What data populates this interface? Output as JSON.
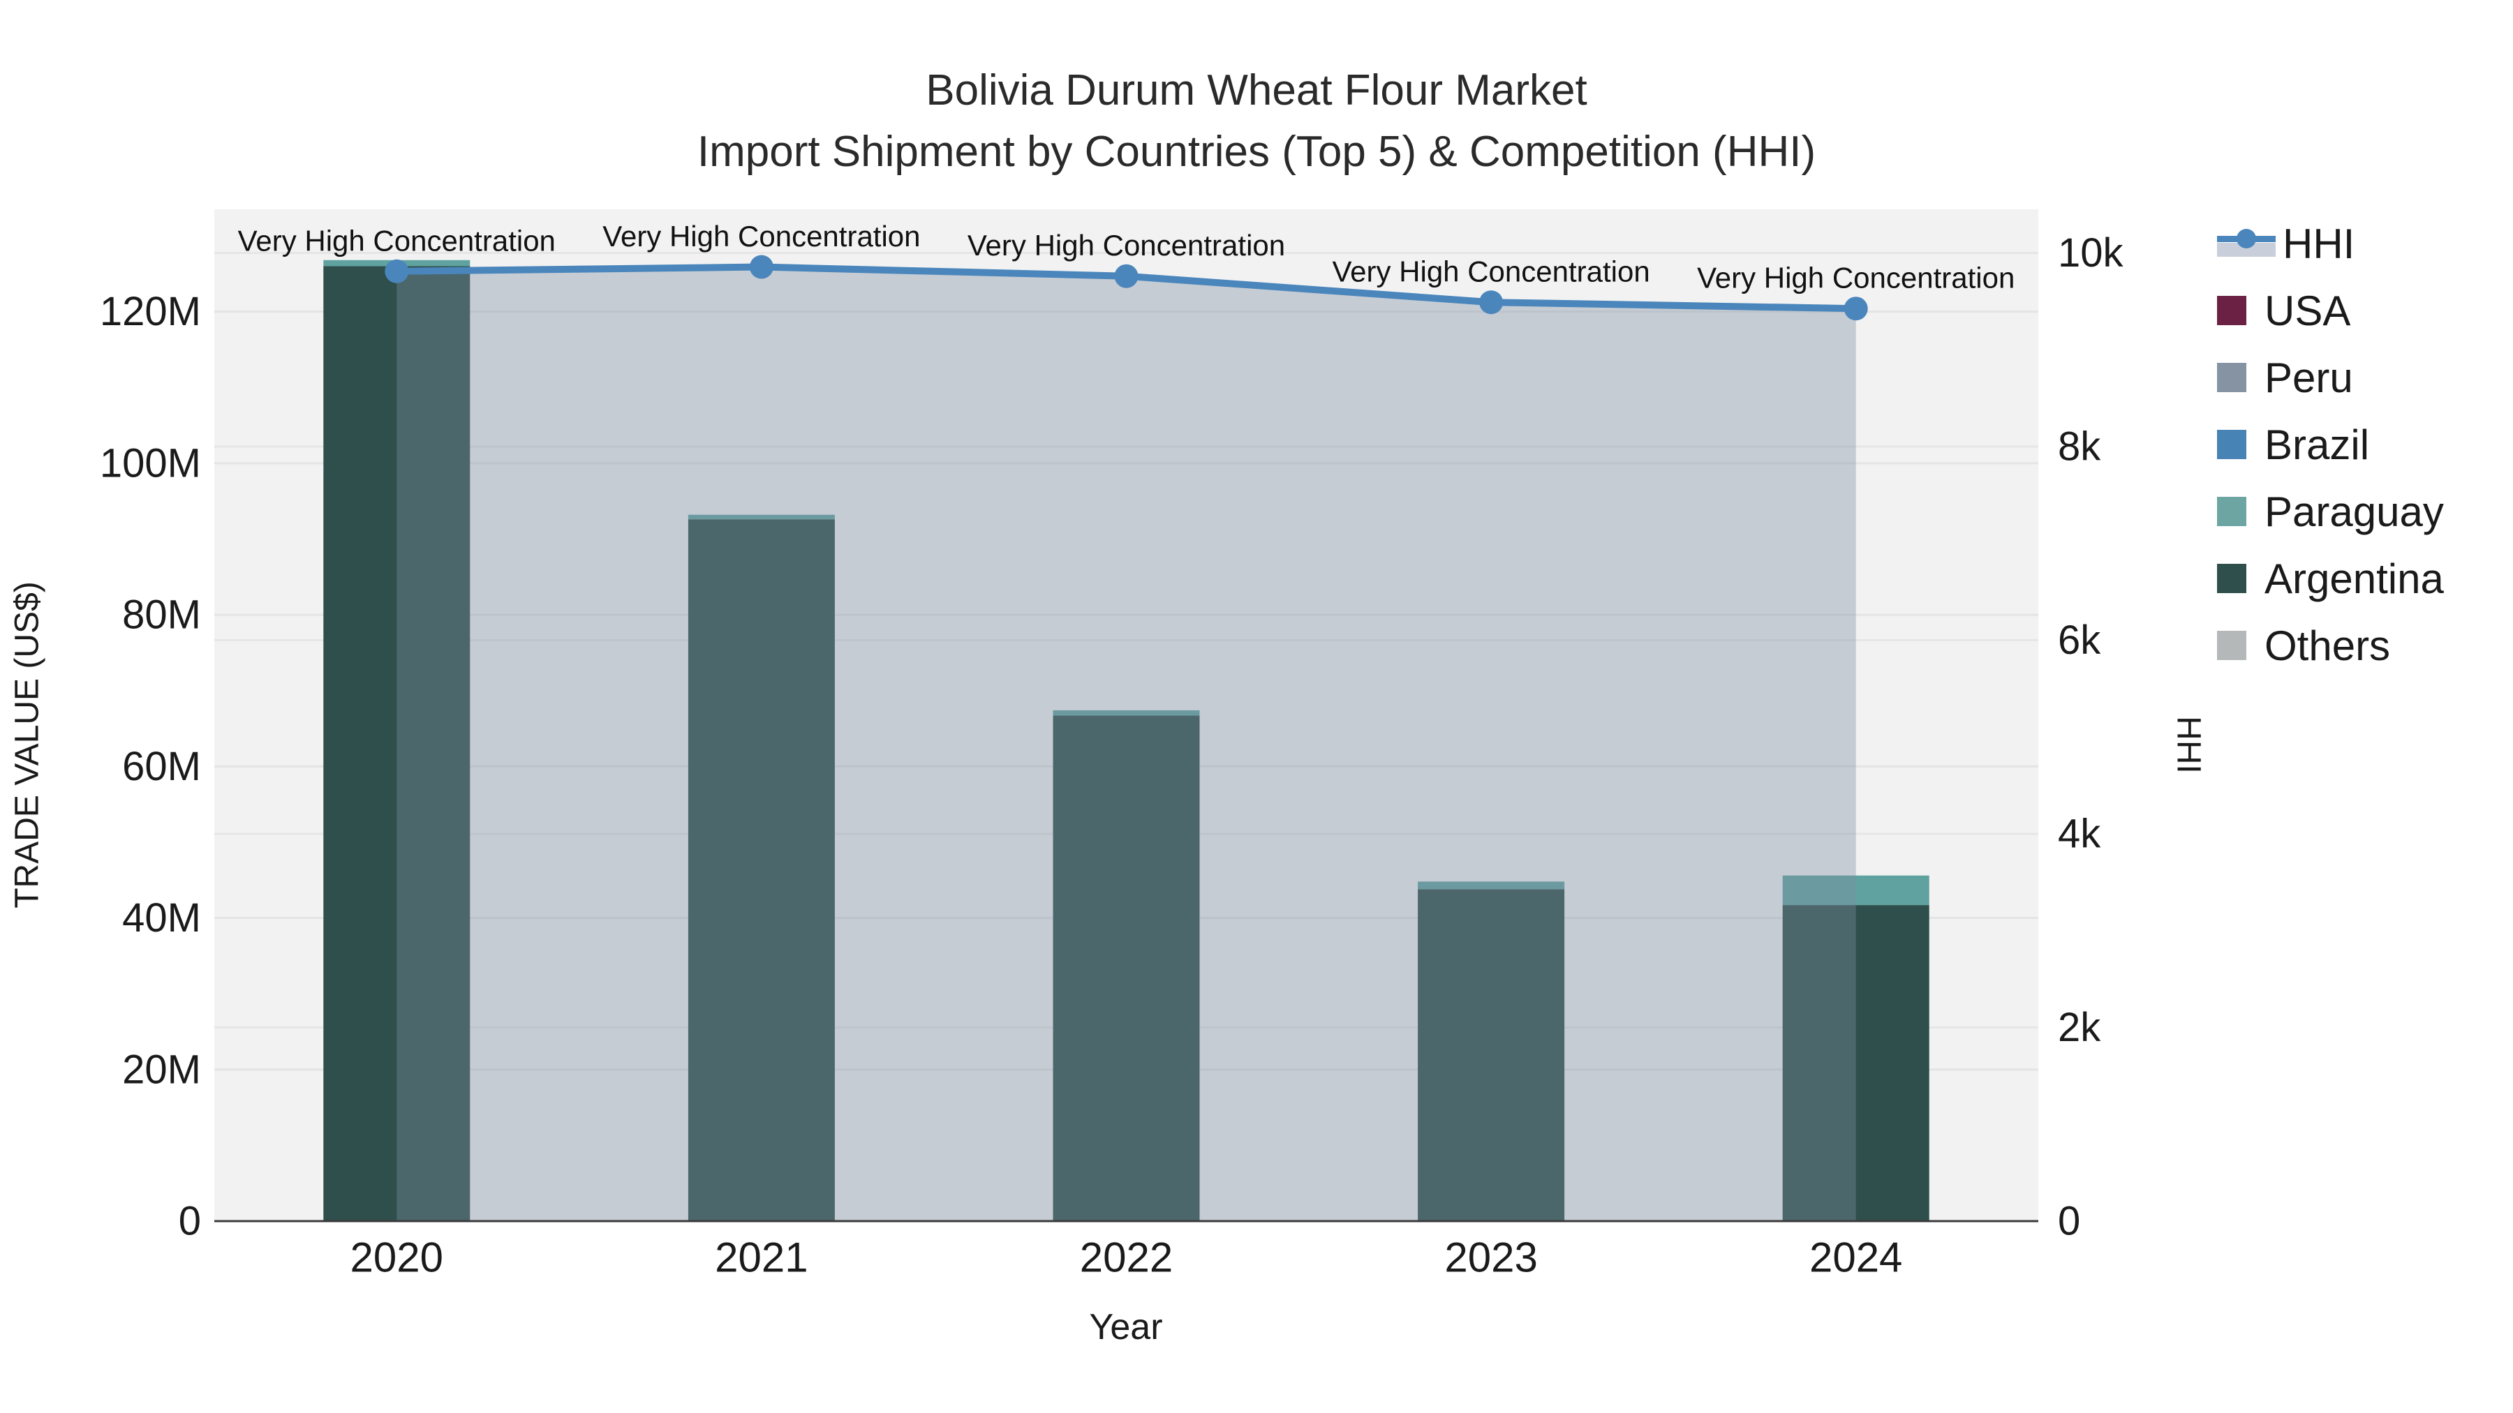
{
  "title": {
    "line1": "Bolivia Durum Wheat Flour Market",
    "line2": "Import Shipment by Countries (Top 5) & Competition (HHI)"
  },
  "chart_data": {
    "type": "combo-stacked-bar-line",
    "title": "Bolivia Durum Wheat Flour Market — Import Shipment by Countries (Top 5) & Competition (HHI)",
    "categories": [
      "2020",
      "2021",
      "2022",
      "2023",
      "2024"
    ],
    "xlabel": "Year",
    "ylabel_left": "TRADE VALUE (US$)",
    "ylabel_right": "HHI",
    "bar_value_unit": "million US$",
    "series": [
      {
        "name": "USA",
        "color": "#6b2144",
        "values": [
          0,
          0,
          0,
          0,
          0
        ]
      },
      {
        "name": "Peru",
        "color": "#8593a3",
        "values": [
          0,
          0,
          0,
          0,
          0
        ]
      },
      {
        "name": "Brazil",
        "color": "#4883b5",
        "values": [
          0,
          0,
          0,
          0,
          0
        ]
      },
      {
        "name": "Paraguay",
        "color": "#5fa29f",
        "values": [
          0.8,
          0.6,
          0.7,
          1.0,
          3.9
        ]
      },
      {
        "name": "Argentina",
        "color": "#2e4f4b",
        "values": [
          126.0,
          92.6,
          66.7,
          43.8,
          41.7
        ]
      },
      {
        "name": "Others",
        "color": "#b5b8b8",
        "values": [
          0,
          0,
          0,
          0,
          0
        ]
      }
    ],
    "stack_order_bottom_to_top": [
      "Others",
      "Argentina",
      "Paraguay",
      "Brazil",
      "Peru",
      "USA"
    ],
    "line_series": {
      "name": "HHI",
      "color": "#4a86bc",
      "area_fill": "rgba(127,142,163,0.38)",
      "values": [
        9810,
        9855,
        9760,
        9490,
        9425
      ]
    },
    "annotations": [
      {
        "category": "2020",
        "text": "Very High Concentration"
      },
      {
        "category": "2021",
        "text": "Very High Concentration"
      },
      {
        "category": "2022",
        "text": "Very High Concentration"
      },
      {
        "category": "2023",
        "text": "Very High Concentration"
      },
      {
        "category": "2024",
        "text": "Very High Concentration"
      }
    ],
    "axes": {
      "left": {
        "max": 133.5,
        "tick_values": [
          0,
          20,
          40,
          60,
          80,
          100,
          120
        ],
        "tick_labels": [
          "0",
          "20M",
          "40M",
          "60M",
          "80M",
          "100M",
          "120M"
        ]
      },
      "right": {
        "max": 10450,
        "tick_values": [
          0,
          2000,
          4000,
          6000,
          8000,
          10000
        ],
        "tick_labels": [
          "0",
          "2k",
          "4k",
          "6k",
          "8k",
          "10k"
        ]
      }
    },
    "grid": true,
    "plot_background": "#f2f2f2",
    "legend_position": "right"
  },
  "legend": {
    "items": [
      {
        "label": "HHI",
        "type": "line",
        "color": "#4a86bc"
      },
      {
        "label": "USA",
        "type": "swatch",
        "color": "#6b2144"
      },
      {
        "label": "Peru",
        "type": "swatch",
        "color": "#8593a3"
      },
      {
        "label": "Brazil",
        "type": "swatch",
        "color": "#4883b5"
      },
      {
        "label": "Paraguay",
        "type": "swatch",
        "color": "#6ca5a2"
      },
      {
        "label": "Argentina",
        "type": "swatch",
        "color": "#2e4f4b"
      },
      {
        "label": "Others",
        "type": "swatch",
        "color": "#b5b8b8"
      }
    ]
  },
  "axis_titles": {
    "left": "TRADE VALUE (US$)",
    "right": "HHI",
    "x": "Year"
  }
}
